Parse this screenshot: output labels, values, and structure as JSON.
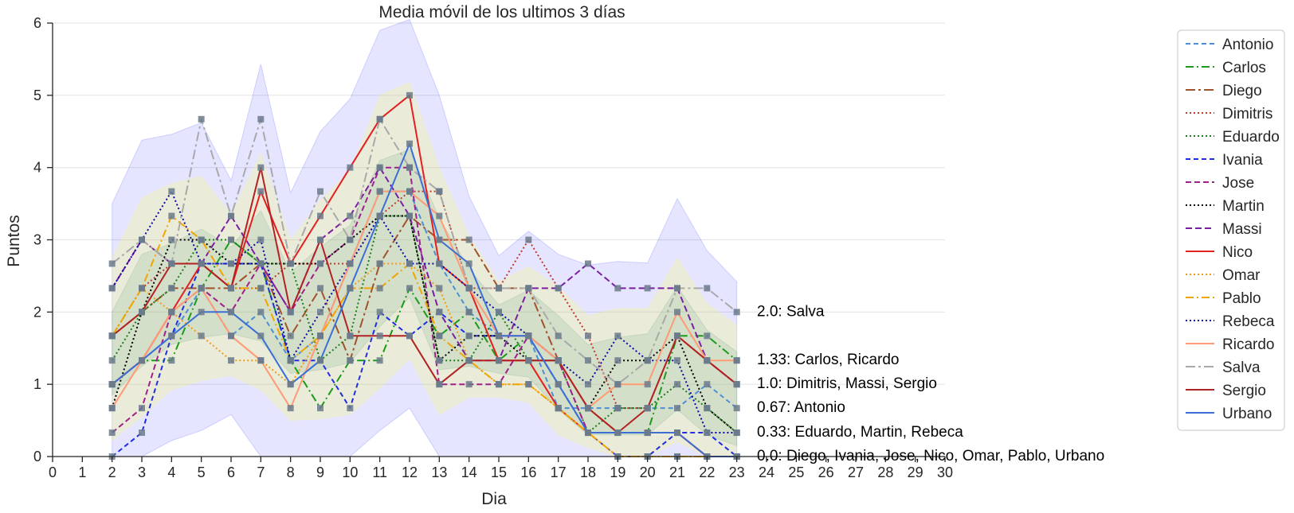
{
  "chart_data": {
    "type": "line",
    "title": "Media móvil de los ultimos 3 días",
    "xlabel": "Dia",
    "ylabel": "Puntos",
    "xlim": [
      0,
      30
    ],
    "ylim": [
      0,
      6
    ],
    "xticks": [
      0,
      1,
      2,
      3,
      4,
      5,
      6,
      7,
      8,
      9,
      10,
      11,
      12,
      13,
      14,
      15,
      16,
      17,
      18,
      19,
      20,
      21,
      22,
      23,
      24,
      25,
      26,
      27,
      28,
      29,
      30
    ],
    "yticks": [
      0,
      1,
      2,
      3,
      4,
      5,
      6
    ],
    "grid": "horizontal",
    "legend_position": "right",
    "x": [
      2,
      3,
      4,
      5,
      6,
      7,
      8,
      9,
      10,
      11,
      12,
      13,
      14,
      15,
      16,
      17,
      18,
      19,
      20,
      21,
      22,
      23
    ],
    "bands": [
      {
        "color": "#0000ff",
        "opacity": 0.1,
        "upper": [
          3.5,
          4.38,
          4.46,
          4.62,
          3.82,
          5.43,
          3.65,
          4.5,
          4.95,
          5.9,
          6.05,
          5.0,
          3.6,
          2.78,
          3.12,
          2.8,
          2.65,
          2.7,
          2.68,
          3.57,
          2.85,
          2.42
        ],
        "lower": [
          0,
          0,
          0.22,
          0.36,
          0.58,
          0,
          0,
          0,
          0,
          0.36,
          0.67,
          0,
          0,
          0,
          0,
          0,
          0,
          0,
          0,
          0,
          0,
          0
        ]
      },
      {
        "color": "#ffff66",
        "opacity": 0.25,
        "upper": [
          2.75,
          3.58,
          3.78,
          3.88,
          3.35,
          4.2,
          3.0,
          3.55,
          3.95,
          5.0,
          5.18,
          4.0,
          3.05,
          2.42,
          2.63,
          2.35,
          1.95,
          2.05,
          2.05,
          2.75,
          2.12,
          1.82
        ],
        "lower": [
          0.22,
          0.55,
          0.92,
          1.05,
          1.12,
          0.92,
          0.5,
          0.52,
          0.58,
          0.95,
          1.35,
          0.58,
          0.82,
          0.82,
          0.75,
          0.3,
          0.12,
          0,
          0,
          0.2,
          0,
          0
        ]
      },
      {
        "color": "#2e8b57",
        "opacity": 0.12,
        "upper": [
          2.0,
          2.8,
          2.95,
          3.15,
          2.9,
          3.4,
          2.55,
          2.9,
          3.2,
          4.1,
          4.25,
          3.3,
          2.6,
          2.1,
          2.3,
          1.95,
          1.55,
          1.65,
          1.7,
          2.35,
          1.75,
          1.45
        ],
        "lower": [
          0.85,
          1.25,
          1.55,
          1.65,
          1.7,
          1.6,
          1.15,
          1.2,
          1.3,
          1.8,
          2.2,
          1.2,
          1.25,
          1.15,
          1.1,
          0.65,
          0.3,
          0.3,
          0.3,
          0.65,
          0.3,
          0.15
        ]
      }
    ],
    "series": [
      {
        "name": "Antonio",
        "color": "#4c8fd6",
        "dash": "6,4",
        "values": [
          1.0,
          1.33,
          1.67,
          2.33,
          1.67,
          2.0,
          1.33,
          1.67,
          2.67,
          3.67,
          3.67,
          2.67,
          2.0,
          1.67,
          1.67,
          0.67,
          0.67,
          0.67,
          0.67,
          0.67,
          1.0,
          0.67
        ]
      },
      {
        "name": "Carlos",
        "color": "#1a9c1a",
        "dash": "10,4,2,4",
        "values": [
          1.0,
          1.33,
          1.33,
          2.33,
          3.0,
          2.67,
          1.33,
          0.67,
          1.33,
          1.33,
          2.33,
          1.67,
          2.0,
          1.33,
          1.67,
          1.33,
          0.67,
          0.33,
          0.33,
          1.67,
          1.67,
          1.33
        ]
      },
      {
        "name": "Diego",
        "color": "#a0522d",
        "dash": "12,4,3,4",
        "values": [
          1.67,
          2.0,
          2.33,
          2.33,
          2.33,
          2.67,
          1.67,
          2.33,
          1.33,
          2.67,
          3.33,
          3.0,
          3.0,
          2.33,
          2.33,
          1.33,
          0.67,
          0.33,
          0.33,
          0.33,
          0.0,
          0.0
        ]
      },
      {
        "name": "Dimitris",
        "color": "#c0392b",
        "dash": "2,3",
        "values": [
          1.67,
          2.33,
          2.67,
          2.67,
          2.33,
          2.33,
          2.67,
          2.67,
          2.67,
          3.33,
          3.67,
          3.67,
          2.33,
          2.33,
          3.0,
          2.33,
          1.67,
          0.67,
          0.67,
          1.67,
          1.33,
          1.0
        ]
      },
      {
        "name": "Eduardo",
        "color": "#1a7f1a",
        "dash": "2,3",
        "values": [
          1.33,
          2.0,
          2.33,
          3.0,
          3.0,
          2.67,
          2.67,
          1.33,
          1.67,
          3.33,
          3.33,
          1.33,
          1.33,
          2.0,
          1.33,
          1.33,
          0.33,
          0.67,
          0.67,
          1.0,
          0.67,
          0.33
        ]
      },
      {
        "name": "Ivania",
        "color": "#1f2ee0",
        "dash": "6,4",
        "values": [
          0.0,
          0.33,
          1.67,
          2.67,
          2.67,
          2.67,
          1.33,
          1.33,
          0.67,
          2.0,
          1.67,
          2.0,
          1.67,
          1.67,
          1.67,
          1.0,
          0.33,
          0.0,
          0.0,
          0.33,
          0.33,
          0.0
        ]
      },
      {
        "name": "Jose",
        "color": "#a0208a",
        "dash": "7,4",
        "values": [
          0.33,
          0.67,
          2.0,
          2.33,
          2.0,
          2.67,
          2.0,
          2.67,
          3.0,
          4.0,
          4.0,
          1.0,
          1.0,
          1.0,
          1.67,
          1.33,
          0.33,
          0.33,
          0.33,
          0.33,
          0.0,
          0.0
        ]
      },
      {
        "name": "Martin",
        "color": "#000000",
        "dash": "2,3",
        "values": [
          0.67,
          2.0,
          3.0,
          3.0,
          2.67,
          2.67,
          2.67,
          2.67,
          3.0,
          3.33,
          3.33,
          1.33,
          1.67,
          1.67,
          1.33,
          1.33,
          0.67,
          1.33,
          1.33,
          1.67,
          0.67,
          0.33
        ]
      },
      {
        "name": "Massi",
        "color": "#7b1fa2",
        "dash": "8,4",
        "values": [
          2.33,
          3.0,
          2.67,
          2.67,
          3.33,
          2.67,
          2.0,
          3.0,
          3.33,
          4.0,
          3.33,
          2.0,
          1.33,
          1.33,
          2.33,
          2.33,
          2.67,
          2.33,
          2.33,
          2.33,
          1.33,
          1.0
        ]
      },
      {
        "name": "Nico",
        "color": "#e32020",
        "dash": "",
        "values": [
          1.0,
          1.33,
          2.0,
          2.67,
          2.33,
          3.67,
          2.67,
          3.33,
          4.0,
          4.67,
          5.0,
          2.67,
          2.33,
          1.33,
          1.33,
          0.67,
          0.33,
          0.33,
          0.33,
          0.33,
          0.0,
          0.0
        ]
      },
      {
        "name": "Omar",
        "color": "#f39c12",
        "dash": "2,3",
        "values": [
          1.67,
          2.33,
          2.0,
          1.67,
          1.33,
          1.33,
          1.0,
          1.67,
          2.33,
          2.67,
          2.67,
          2.33,
          1.33,
          1.0,
          1.0,
          0.67,
          0.33,
          0.0,
          0.0,
          0.0,
          0.0,
          0.0
        ]
      },
      {
        "name": "Pablo",
        "color": "#f0a500",
        "dash": "10,4,2,4",
        "values": [
          1.67,
          2.33,
          3.33,
          3.0,
          2.33,
          2.33,
          1.33,
          1.67,
          2.33,
          2.33,
          2.67,
          1.67,
          1.33,
          1.0,
          1.0,
          0.67,
          0.33,
          0.0,
          0.0,
          0.0,
          0.0,
          0.0
        ]
      },
      {
        "name": "Rebeca",
        "color": "#0a0aa8",
        "dash": "2,3",
        "values": [
          2.33,
          3.0,
          3.67,
          2.67,
          2.67,
          3.0,
          1.33,
          2.0,
          2.67,
          3.33,
          2.67,
          2.67,
          2.33,
          2.0,
          1.67,
          1.33,
          1.0,
          1.67,
          1.33,
          1.33,
          0.33,
          0.33
        ]
      },
      {
        "name": "Ricardo",
        "color": "#ff9a76",
        "dash": "",
        "values": [
          0.67,
          1.33,
          2.0,
          2.33,
          1.67,
          1.33,
          0.67,
          1.67,
          2.67,
          3.67,
          3.67,
          3.33,
          2.33,
          1.67,
          1.67,
          1.33,
          0.67,
          1.0,
          1.0,
          2.0,
          1.33,
          1.33
        ]
      },
      {
        "name": "Salva",
        "color": "#a9a9a9",
        "dash": "12,4,3,4",
        "values": [
          2.67,
          3.0,
          2.67,
          4.67,
          3.33,
          4.67,
          2.67,
          3.67,
          3.0,
          4.67,
          4.0,
          3.67,
          2.33,
          2.33,
          2.33,
          1.67,
          1.33,
          1.0,
          1.33,
          2.33,
          2.33,
          2.0
        ]
      },
      {
        "name": "Sergio",
        "color": "#b22222",
        "dash": "",
        "values": [
          1.67,
          2.0,
          2.67,
          2.67,
          2.33,
          4.0,
          2.0,
          3.0,
          1.67,
          1.67,
          1.67,
          1.0,
          1.33,
          1.33,
          1.33,
          1.33,
          0.67,
          0.33,
          0.67,
          1.67,
          1.33,
          1.0
        ]
      },
      {
        "name": "Urbano",
        "color": "#3b6fd6",
        "dash": "",
        "values": [
          1.0,
          1.33,
          1.67,
          2.0,
          2.0,
          1.67,
          1.0,
          1.33,
          2.33,
          3.33,
          4.33,
          3.0,
          2.67,
          1.67,
          1.67,
          1.0,
          0.33,
          0.33,
          0.33,
          0.33,
          0.0,
          0.0
        ]
      }
    ],
    "annotations": [
      {
        "y": 2.0,
        "text": "2.0: Salva"
      },
      {
        "y": 1.33,
        "text": "1.33: Carlos, Ricardo"
      },
      {
        "y": 1.0,
        "text": "1.0: Dimitris, Massi, Sergio"
      },
      {
        "y": 0.67,
        "text": "0.67: Antonio"
      },
      {
        "y": 0.33,
        "text": "0.33: Eduardo, Martin, Rebeca"
      },
      {
        "y": 0.0,
        "text": "0.0: Diego, Ivania, Jose, Nico, Omar, Pablo, Urbano"
      }
    ],
    "marker_color": "#6b7b8c"
  }
}
